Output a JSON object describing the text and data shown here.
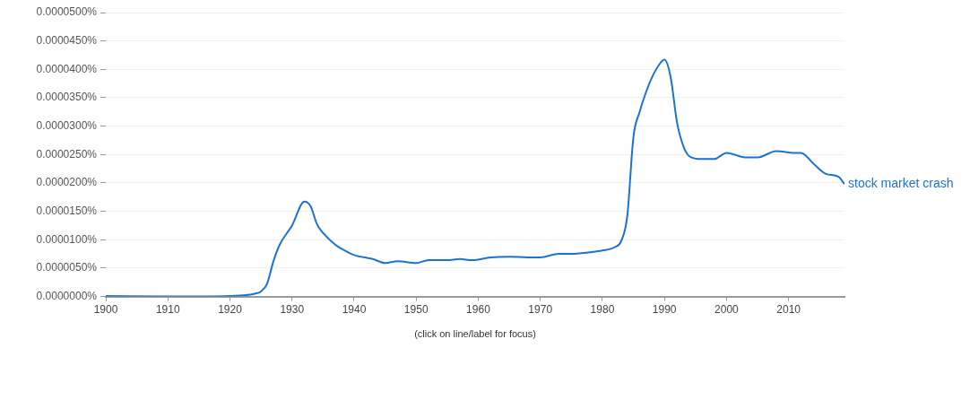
{
  "chart_data": {
    "type": "line",
    "annotations": [
      "(click on line/label for focus)"
    ],
    "x": [
      1900,
      1910,
      1920,
      1922,
      1924,
      1925,
      1926,
      1927,
      1928,
      1930,
      1932,
      1933,
      1934,
      1935,
      1937,
      1938,
      1940,
      1943,
      1945,
      1947,
      1950,
      1952,
      1955,
      1957,
      1959,
      1962,
      1965,
      1968,
      1970,
      1973,
      1975,
      1978,
      1980,
      1982,
      1983,
      1984,
      1985,
      1986,
      1987,
      1988,
      1989,
      1990,
      1991,
      1992,
      1993,
      1994,
      1996,
      1998,
      2000,
      2003,
      2005,
      2008,
      2011,
      2012,
      2014,
      2016,
      2018,
      2019
    ],
    "series": [
      {
        "name": "stock market crash",
        "color": "#1a73d4",
        "values": [
          1e-07,
          0,
          1e-07,
          2e-07,
          5e-07,
          9e-07,
          2.3e-06,
          6.2e-06,
          9.1e-06,
          1.25e-05,
          1.67e-05,
          1.59e-05,
          1.28e-05,
          1.12e-05,
          9.1e-06,
          8.4e-06,
          7.3e-06,
          6.6e-06,
          5.9e-06,
          6.2e-06,
          5.9e-06,
          6.4e-06,
          6.4e-06,
          6.6e-06,
          6.4e-06,
          6.9e-06,
          7e-06,
          6.9e-06,
          6.9e-06,
          7.5e-06,
          7.5e-06,
          7.8e-06,
          8.1e-06,
          8.7e-06,
          9.7e-06,
          1.41e-05,
          2.81e-05,
          3.25e-05,
          3.59e-05,
          3.86e-05,
          4.06e-05,
          4.17e-05,
          3.86e-05,
          3.08e-05,
          2.66e-05,
          2.47e-05,
          2.42e-05,
          2.42e-05,
          2.53e-05,
          2.45e-05,
          2.45e-05,
          2.56e-05,
          2.53e-05,
          2.53e-05,
          2.34e-05,
          2.16e-05,
          2.11e-05,
          1.98e-05
        ]
      }
    ],
    "xlim": [
      1900,
      2019
    ],
    "xticks": [
      1900,
      1910,
      1920,
      1930,
      1940,
      1950,
      1960,
      1970,
      1980,
      1990,
      2000,
      2010
    ],
    "ylim": [
      0,
      5e-05
    ],
    "yticks": [
      {
        "value": 0,
        "label": "0.0000000%"
      },
      {
        "value": 5e-06,
        "label": "0.0000050%"
      },
      {
        "value": 1e-05,
        "label": "0.0000100%"
      },
      {
        "value": 1.5e-05,
        "label": "0.0000150%"
      },
      {
        "value": 2e-05,
        "label": "0.0000200%"
      },
      {
        "value": 2.5e-05,
        "label": "0.0000250%"
      },
      {
        "value": 3e-05,
        "label": "0.0000300%"
      },
      {
        "value": 3.5e-05,
        "label": "0.0000350%"
      },
      {
        "value": 4e-05,
        "label": "0.0000400%"
      },
      {
        "value": 4.5e-05,
        "label": "0.0000450%"
      },
      {
        "value": 5e-05,
        "label": "0.0000500%"
      }
    ],
    "grid": "y",
    "legend": false,
    "marker": "none",
    "line_style": "solid"
  }
}
